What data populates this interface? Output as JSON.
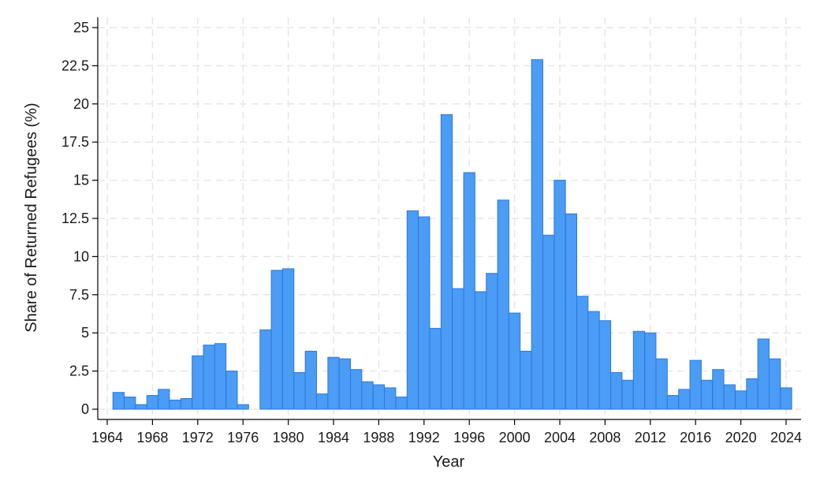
{
  "chart_data": {
    "type": "bar",
    "title": "",
    "xlabel": "Year",
    "ylabel": "Share of Returned Refugees (%)",
    "ylim": [
      0,
      25
    ],
    "xlim": [
      1964,
      2024
    ],
    "grid": true,
    "colors": {
      "bar_fill": "#4a9cf5",
      "bar_stroke": "#2f78d8",
      "grid": "#e6e6e6"
    },
    "x_ticks": [
      "1964",
      "1968",
      "1972",
      "1976",
      "1980",
      "1984",
      "1988",
      "1992",
      "1996",
      "2000",
      "2004",
      "2008",
      "2012",
      "2016",
      "2020",
      "2024"
    ],
    "y_ticks": [
      "0",
      "2.5",
      "5",
      "7.5",
      "10",
      "12.5",
      "15",
      "17.5",
      "20",
      "22.5",
      "25"
    ],
    "categories": [
      1965,
      1966,
      1967,
      1968,
      1969,
      1970,
      1971,
      1972,
      1973,
      1974,
      1975,
      1976,
      1977,
      1978,
      1979,
      1980,
      1981,
      1982,
      1983,
      1984,
      1985,
      1986,
      1987,
      1988,
      1989,
      1990,
      1991,
      1992,
      1993,
      1994,
      1995,
      1996,
      1997,
      1998,
      1999,
      2000,
      2001,
      2002,
      2003,
      2004,
      2005,
      2006,
      2007,
      2008,
      2009,
      2010,
      2011,
      2012,
      2013,
      2014,
      2015,
      2016,
      2017,
      2018,
      2019,
      2020,
      2021,
      2022,
      2023,
      2024
    ],
    "values": [
      1.1,
      0.8,
      0.3,
      0.9,
      1.3,
      0.6,
      0.7,
      3.5,
      4.2,
      4.3,
      2.5,
      0.3,
      null,
      5.2,
      9.1,
      9.2,
      2.4,
      3.8,
      1.0,
      3.4,
      3.3,
      2.6,
      1.8,
      1.6,
      1.4,
      0.8,
      13.0,
      12.6,
      5.3,
      19.3,
      7.9,
      15.5,
      7.7,
      8.9,
      13.7,
      6.3,
      3.8,
      22.9,
      11.4,
      15.0,
      12.8,
      7.4,
      6.4,
      5.8,
      2.4,
      1.9,
      5.1,
      5.0,
      3.3,
      0.9,
      1.3,
      3.2,
      1.9,
      2.6,
      1.6,
      1.2,
      2.0,
      4.6,
      3.3,
      1.4
    ]
  }
}
